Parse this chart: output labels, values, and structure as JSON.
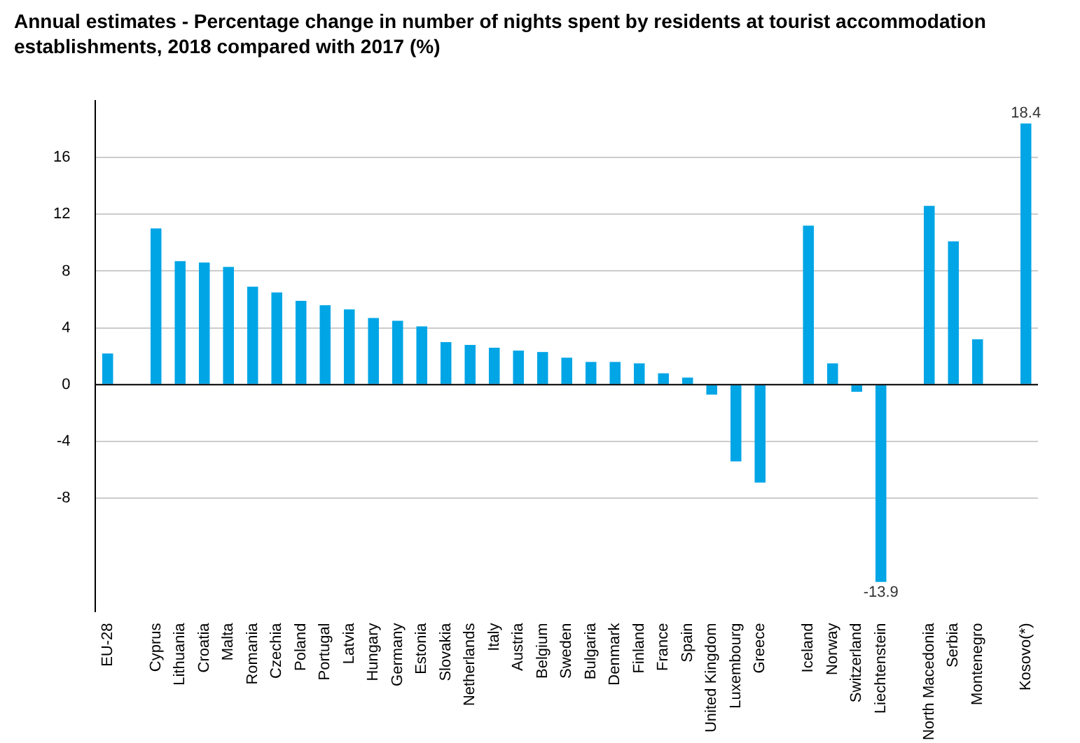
{
  "chart_data": {
    "type": "bar",
    "title": "Annual estimates - Percentage change in number of nights spent by residents at tourist accommodation establishments, 2018 compared with 2017 (%)",
    "categories": [
      "EU-28",
      null,
      "Cyprus",
      "Lithuania",
      "Croatia",
      "Malta",
      "Romania",
      "Czechia",
      "Poland",
      "Portugal",
      "Latvia",
      "Hungary",
      "Germany",
      "Estonia",
      "Slovakia",
      "Netherlands",
      "Italy",
      "Austria",
      "Belgium",
      "Sweden",
      "Bulgaria",
      "Denmark",
      "Finland",
      "France",
      "Spain",
      "United Kingdom",
      "Luxembourg",
      "Greece",
      null,
      "Iceland",
      "Norway",
      "Switzerland",
      "Liechtenstein",
      null,
      "North Macedonia",
      "Serbia",
      "Montenegro",
      null,
      "Kosovo(*)"
    ],
    "values": [
      2.2,
      null,
      11.0,
      8.7,
      8.6,
      8.3,
      6.9,
      6.5,
      5.9,
      5.6,
      5.3,
      4.7,
      4.5,
      4.1,
      3.0,
      2.8,
      2.6,
      2.4,
      2.3,
      1.9,
      1.6,
      1.6,
      1.5,
      0.8,
      0.5,
      -0.7,
      -5.4,
      -6.9,
      null,
      11.2,
      1.5,
      -0.5,
      -13.9,
      null,
      12.6,
      10.1,
      3.2,
      null,
      18.4
    ],
    "value_labels": [
      null,
      null,
      null,
      null,
      null,
      null,
      null,
      null,
      null,
      null,
      null,
      null,
      null,
      null,
      null,
      null,
      null,
      null,
      null,
      null,
      null,
      null,
      null,
      null,
      null,
      null,
      null,
      null,
      null,
      null,
      null,
      null,
      "-13.9",
      null,
      null,
      null,
      null,
      null,
      "18.4"
    ],
    "color": "#00a5e6",
    "ylim": [
      -16,
      20
    ],
    "yticks": [
      -8,
      -4,
      0,
      4,
      8,
      12,
      16
    ],
    "grid": "y",
    "ref_lines": [
      {
        "axis": "y",
        "value": 0,
        "color": "#000000"
      }
    ]
  }
}
